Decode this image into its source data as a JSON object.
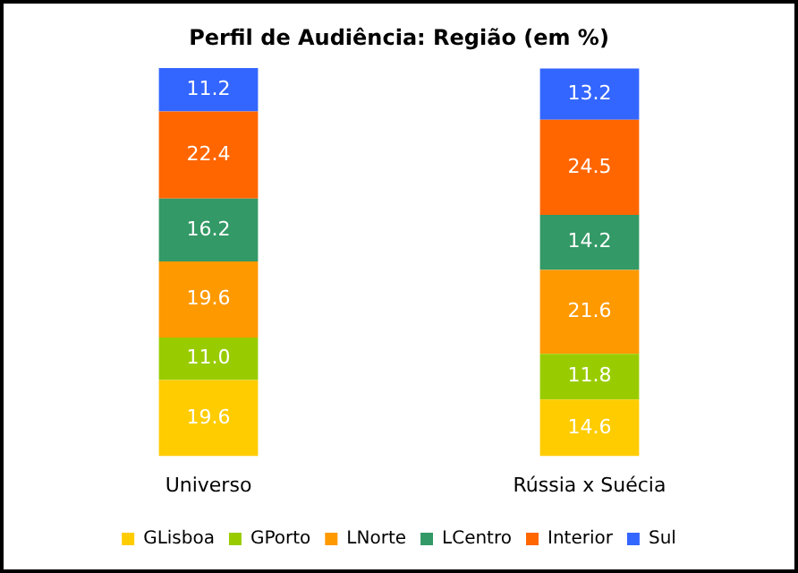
{
  "chart_data": {
    "type": "bar",
    "stacked": true,
    "title": "Perfil de Audiência: Região (em %)",
    "categories": [
      "Universo",
      "Rússia x Suécia"
    ],
    "legend": "bottom",
    "grid": false,
    "data_labels": true,
    "series": [
      {
        "name": "GLisboa",
        "color": "#ffcc00",
        "values": [
          19.6,
          14.6
        ]
      },
      {
        "name": "GPorto",
        "color": "#99cc00",
        "values": [
          11.0,
          11.8
        ],
        "value_labels": [
          "11.0",
          "11.8"
        ]
      },
      {
        "name": "LNorte",
        "color": "#ff9900",
        "values": [
          19.6,
          21.6
        ]
      },
      {
        "name": "LCentro",
        "color": "#339966",
        "values": [
          16.2,
          14.2
        ]
      },
      {
        "name": "Interior",
        "color": "#ff6600",
        "values": [
          22.4,
          24.5
        ]
      },
      {
        "name": "Sul",
        "color": "#3366ff",
        "values": [
          11.2,
          13.2
        ]
      }
    ]
  }
}
